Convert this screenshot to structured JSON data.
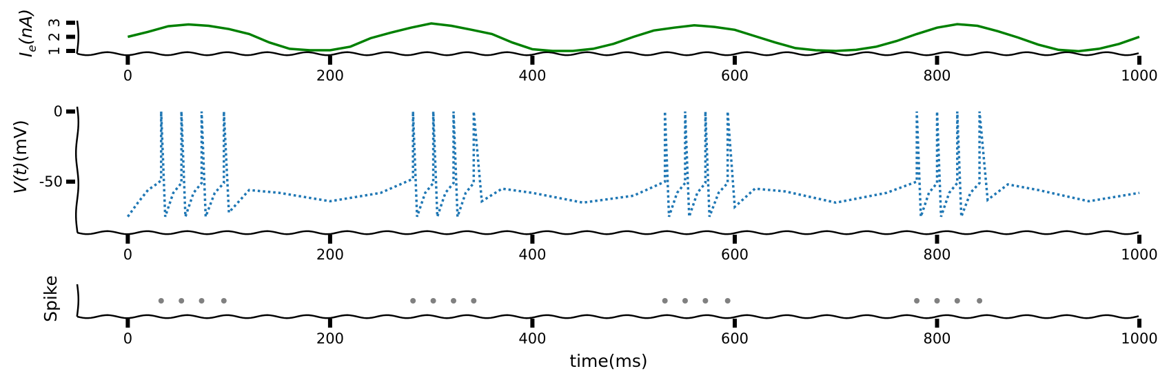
{
  "chart_data": [
    {
      "type": "line",
      "ylabel_main": "I",
      "ylabel_sub": "e",
      "ylabel_rest": "(nA)",
      "xlabel": "",
      "xlim": [
        -50,
        1000
      ],
      "ylim": [
        1,
        3
      ],
      "x_ticks": [
        "0",
        "200",
        "400",
        "600",
        "800",
        "1000"
      ],
      "y_ticks": [
        "1",
        "2",
        "3"
      ],
      "color": "#008000",
      "series": [
        {
          "x": [
            0,
            20,
            40,
            60,
            80,
            100,
            120,
            140,
            160,
            180,
            200,
            220,
            240,
            260,
            280,
            300,
            320,
            340,
            360,
            380,
            400,
            420,
            440,
            460,
            480,
            500,
            520,
            540,
            560,
            580,
            600,
            620,
            640,
            660,
            680,
            700,
            720,
            740,
            760,
            780,
            800,
            820,
            840,
            860,
            880,
            900,
            920,
            940,
            960,
            980,
            1000
          ],
          "values": [
            2.0,
            2.35,
            2.75,
            2.88,
            2.78,
            2.55,
            2.2,
            1.6,
            1.15,
            1.05,
            1.05,
            1.3,
            1.9,
            2.3,
            2.65,
            2.95,
            2.78,
            2.5,
            2.2,
            1.6,
            1.12,
            1.0,
            1.0,
            1.15,
            1.5,
            2.0,
            2.45,
            2.65,
            2.82,
            2.7,
            2.5,
            2.05,
            1.6,
            1.2,
            1.05,
            1.0,
            1.08,
            1.3,
            1.7,
            2.2,
            2.65,
            2.9,
            2.78,
            2.4,
            1.95,
            1.45,
            1.08,
            0.98,
            1.15,
            1.5,
            2.0
          ]
        }
      ]
    },
    {
      "type": "line",
      "ylabel_main": "V",
      "ylabel_sub": "(t)",
      "ylabel_rest": "(mV)",
      "xlabel": "",
      "xlim": [
        -50,
        1000
      ],
      "ylim": [
        -80,
        0
      ],
      "x_ticks": [
        "0",
        "200",
        "400",
        "600",
        "800",
        "1000"
      ],
      "y_ticks": [
        "0",
        "-50"
      ],
      "color": "#1f77b4",
      "spike_times": [
        33,
        53,
        73,
        95,
        282,
        302,
        322,
        342,
        531,
        551,
        571,
        593,
        780,
        800,
        820,
        842
      ],
      "series": [
        {
          "x": [
            0,
            10,
            20,
            30,
            33,
            33,
            37,
            45,
            53,
            53,
            57,
            65,
            73,
            73,
            77,
            86,
            95,
            95,
            100,
            120,
            150,
            200,
            250,
            282,
            282,
            286,
            294,
            302,
            302,
            306,
            314,
            322,
            322,
            326,
            334,
            342,
            342,
            350,
            370,
            400,
            450,
            500,
            531,
            531,
            535,
            543,
            551,
            551,
            555,
            563,
            571,
            571,
            575,
            584,
            593,
            593,
            600,
            620,
            650,
            700,
            750,
            780,
            780,
            784,
            792,
            800,
            800,
            804,
            812,
            820,
            820,
            824,
            833,
            842,
            842,
            850,
            870,
            900,
            950,
            1000
          ],
          "values": [
            -75,
            -65,
            -56,
            -51,
            -49,
            0,
            -75,
            -58,
            -51,
            0,
            -75,
            -58,
            -51,
            0,
            -75,
            -58,
            -51,
            0,
            -72,
            -56,
            -58,
            -64,
            -58,
            -48,
            0,
            -75,
            -58,
            -51,
            0,
            -75,
            -58,
            -51,
            0,
            -75,
            -58,
            -51,
            0,
            -64,
            -55,
            -58,
            -65,
            -60,
            -50,
            0,
            -75,
            -58,
            -51,
            0,
            -75,
            -58,
            -51,
            0,
            -75,
            -58,
            -51,
            0,
            -68,
            -55,
            -57,
            -65,
            -58,
            -50,
            0,
            -75,
            -58,
            -51,
            0,
            -75,
            -58,
            -51,
            0,
            -75,
            -58,
            -51,
            0,
            -63,
            -52,
            -56,
            -64,
            -58
          ]
        }
      ]
    },
    {
      "type": "scatter",
      "ylabel_main": "Spike",
      "xlabel": "time(ms)",
      "xlim": [
        -50,
        1000
      ],
      "x_ticks": [
        "0",
        "200",
        "400",
        "600",
        "800",
        "1000"
      ],
      "color": "#808080",
      "series": [
        {
          "x": [
            33,
            53,
            73,
            95,
            282,
            302,
            322,
            342,
            531,
            551,
            571,
            593,
            780,
            800,
            820,
            842
          ]
        }
      ]
    }
  ]
}
